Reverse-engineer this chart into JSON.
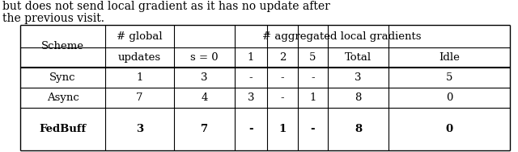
{
  "text_above": [
    "but does not send local gradient as it has no update after",
    "the previous visit."
  ],
  "col_headers_row1": [
    "Scheme",
    "# global",
    "# aggregated local gradients"
  ],
  "col_headers_row2": [
    "",
    "updates",
    "s = 0",
    "1",
    "2",
    "5",
    "Total",
    "Idle"
  ],
  "rows": [
    [
      "Sync",
      "1",
      "3",
      "-",
      "-",
      "-",
      "3",
      "5"
    ],
    [
      "Async",
      "7",
      "4",
      "3",
      "-",
      "1",
      "8",
      "0"
    ],
    [
      "FedBuff",
      "3",
      "7",
      "-",
      "1",
      "-",
      "8",
      "0"
    ]
  ],
  "bold_row": 2,
  "font_size": 9.5,
  "text_font_size": 10.0
}
